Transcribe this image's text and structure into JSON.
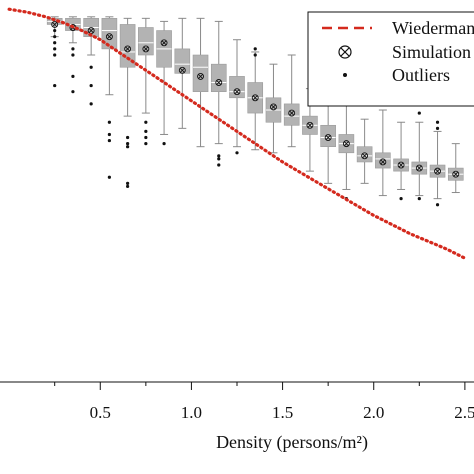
{
  "chart_data": {
    "type": "box",
    "title": "",
    "xlabel": "Density (persons/m²)",
    "ylabel": "",
    "xlim": [
      -0.05,
      2.55
    ],
    "ylim": [
      0.05,
      1.3
    ],
    "x_ticks": [
      0.5,
      1.0,
      1.5,
      2.0,
      2.5
    ],
    "x_tick_labels": [
      "0.5",
      "1.0",
      "1.5",
      "2.0",
      "2.5"
    ],
    "legend": {
      "placement": "top-right",
      "entries": [
        {
          "label": "Wiedermann",
          "marker": "dashed-line",
          "color": "#d42a1e"
        },
        {
          "label": "Simulation",
          "marker": "circle-x",
          "color": "#111111"
        },
        {
          "label": "Outliers",
          "marker": "dot",
          "color": "#111111"
        }
      ]
    },
    "box_color": "#b3b3b3",
    "wiedemann_curve": {
      "name": "Wiedermann",
      "color": "#d42a1e",
      "x": [
        0.0,
        0.1,
        0.2,
        0.3,
        0.4,
        0.5,
        0.6,
        0.7,
        0.8,
        0.9,
        1.0,
        1.1,
        1.2,
        1.3,
        1.4,
        1.5,
        1.6,
        1.7,
        1.8,
        1.9,
        2.0,
        2.1,
        2.2,
        2.3,
        2.4,
        2.5
      ],
      "y": [
        1.27,
        1.26,
        1.245,
        1.225,
        1.2,
        1.17,
        1.13,
        1.09,
        1.05,
        1.01,
        0.97,
        0.93,
        0.89,
        0.85,
        0.81,
        0.77,
        0.735,
        0.7,
        0.665,
        0.63,
        0.595,
        0.565,
        0.535,
        0.51,
        0.485,
        0.455
      ]
    },
    "boxes": [
      {
        "x": 0.25,
        "whisker_low": 1.18,
        "q1": 1.22,
        "median": 1.23,
        "q3": 1.24,
        "whisker_high": 1.245,
        "mean": 1.22,
        "outliers": [
          1.2,
          1.18,
          1.16,
          1.14,
          1.12,
          1.02
        ]
      },
      {
        "x": 0.35,
        "whisker_low": 1.16,
        "q1": 1.2,
        "median": 1.22,
        "q3": 1.24,
        "whisker_high": 1.245,
        "mean": 1.21,
        "outliers": [
          1.14,
          1.12,
          1.05,
          1.0
        ]
      },
      {
        "x": 0.45,
        "whisker_low": 1.12,
        "q1": 1.18,
        "median": 1.21,
        "q3": 1.24,
        "whisker_high": 1.245,
        "mean": 1.2,
        "outliers": [
          1.08,
          1.02,
          0.96
        ]
      },
      {
        "x": 0.55,
        "whisker_low": 0.99,
        "q1": 1.14,
        "median": 1.2,
        "q3": 1.24,
        "whisker_high": 1.245,
        "mean": 1.18,
        "outliers": [
          0.9,
          0.86,
          0.84,
          0.72
        ]
      },
      {
        "x": 0.65,
        "whisker_low": 0.92,
        "q1": 1.08,
        "median": 1.13,
        "q3": 1.22,
        "whisker_high": 1.24,
        "mean": 1.14,
        "outliers": [
          0.85,
          0.83,
          0.82,
          0.7,
          0.69
        ]
      },
      {
        "x": 0.75,
        "whisker_low": 0.93,
        "q1": 1.12,
        "median": 1.16,
        "q3": 1.21,
        "whisker_high": 1.24,
        "mean": 1.14,
        "outliers": [
          0.9,
          0.87,
          0.85,
          0.83
        ]
      },
      {
        "x": 0.85,
        "whisker_low": 0.86,
        "q1": 1.08,
        "median": 1.14,
        "q3": 1.2,
        "whisker_high": 1.23,
        "mean": 1.16,
        "outliers": [
          0.83
        ]
      },
      {
        "x": 0.95,
        "whisker_low": 0.88,
        "q1": 1.06,
        "median": 1.09,
        "q3": 1.14,
        "whisker_high": 1.24,
        "mean": 1.07,
        "outliers": []
      },
      {
        "x": 1.05,
        "whisker_low": 0.82,
        "q1": 1.0,
        "median": 1.08,
        "q3": 1.12,
        "whisker_high": 1.24,
        "mean": 1.05,
        "outliers": []
      },
      {
        "x": 1.15,
        "whisker_low": 0.83,
        "q1": 1.0,
        "median": 1.03,
        "q3": 1.09,
        "whisker_high": 1.23,
        "mean": 1.03,
        "outliers": [
          0.79,
          0.78,
          0.76
        ]
      },
      {
        "x": 1.25,
        "whisker_low": 0.82,
        "q1": 0.98,
        "median": 1.0,
        "q3": 1.05,
        "whisker_high": 1.17,
        "mean": 1.0,
        "outliers": [
          0.8
        ]
      },
      {
        "x": 1.35,
        "whisker_low": 0.81,
        "q1": 0.93,
        "median": 0.98,
        "q3": 1.03,
        "whisker_high": 1.13,
        "mean": 0.98,
        "outliers": [
          1.14,
          1.12
        ]
      },
      {
        "x": 1.45,
        "whisker_low": 0.8,
        "q1": 0.9,
        "median": 0.94,
        "q3": 0.98,
        "whisker_high": 1.09,
        "mean": 0.95,
        "outliers": []
      },
      {
        "x": 1.55,
        "whisker_low": 0.82,
        "q1": 0.89,
        "median": 0.92,
        "q3": 0.96,
        "whisker_high": 1.12,
        "mean": 0.93,
        "outliers": []
      },
      {
        "x": 1.65,
        "whisker_low": 0.74,
        "q1": 0.86,
        "median": 0.89,
        "q3": 0.92,
        "whisker_high": 1.01,
        "mean": 0.89,
        "outliers": []
      },
      {
        "x": 1.75,
        "whisker_low": 0.7,
        "q1": 0.82,
        "median": 0.85,
        "q3": 0.89,
        "whisker_high": 1.01,
        "mean": 0.85,
        "outliers": [
          1.04
        ]
      },
      {
        "x": 1.85,
        "whisker_low": 0.68,
        "q1": 0.8,
        "median": 0.83,
        "q3": 0.86,
        "whisker_high": 0.97,
        "mean": 0.83,
        "outliers": [
          1.03,
          0.65
        ]
      },
      {
        "x": 1.95,
        "whisker_low": 0.7,
        "q1": 0.77,
        "median": 0.79,
        "q3": 0.82,
        "whisker_high": 0.91,
        "mean": 0.79,
        "outliers": [
          1.06,
          1.04,
          1.02
        ]
      },
      {
        "x": 2.05,
        "whisker_low": 0.66,
        "q1": 0.75,
        "median": 0.78,
        "q3": 0.8,
        "whisker_high": 0.94,
        "mean": 0.77,
        "outliers": [
          0.96
        ]
      },
      {
        "x": 2.15,
        "whisker_low": 0.68,
        "q1": 0.74,
        "median": 0.76,
        "q3": 0.78,
        "whisker_high": 0.9,
        "mean": 0.76,
        "outliers": [
          0.65
        ]
      },
      {
        "x": 2.25,
        "whisker_low": 0.66,
        "q1": 0.73,
        "median": 0.75,
        "q3": 0.77,
        "whisker_high": 0.9,
        "mean": 0.75,
        "outliers": [
          0.65,
          0.93
        ]
      },
      {
        "x": 2.35,
        "whisker_low": 0.65,
        "q1": 0.72,
        "median": 0.74,
        "q3": 0.76,
        "whisker_high": 0.87,
        "mean": 0.74,
        "outliers": [
          0.63,
          0.9,
          0.88
        ]
      },
      {
        "x": 2.45,
        "whisker_low": 0.67,
        "q1": 0.71,
        "median": 0.73,
        "q3": 0.75,
        "whisker_high": 0.83,
        "mean": 0.73,
        "outliers": []
      }
    ]
  }
}
